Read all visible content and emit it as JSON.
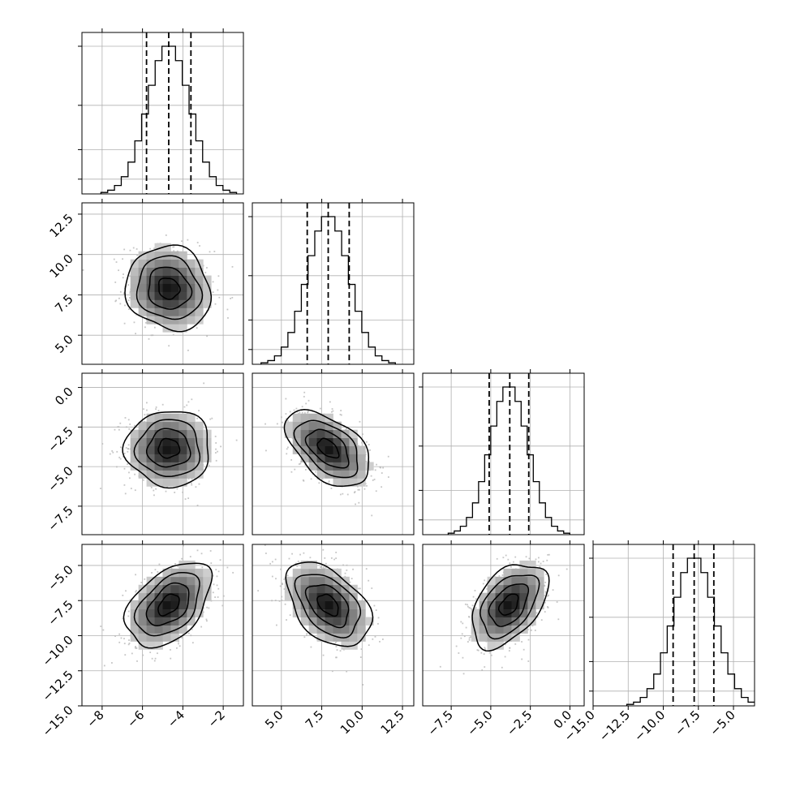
{
  "chart_data": {
    "type": "corner",
    "params": 4,
    "grid": true,
    "hist_bins": 20,
    "params_stats": [
      {
        "mean": -4.7,
        "sd": 1.05,
        "q16": -5.8,
        "q50": -4.7,
        "q84": -3.6,
        "range": [
          -9.0,
          -1.0
        ]
      },
      {
        "mean": 7.9,
        "sd": 1.3,
        "q16": 6.6,
        "q50": 7.9,
        "q84": 9.2,
        "range": [
          3.2,
          13.2
        ]
      },
      {
        "mean": -3.85,
        "sd": 1.2,
        "q16": -5.1,
        "q50": -3.8,
        "q84": -2.6,
        "range": [
          -9.3,
          0.9
        ]
      },
      {
        "mean": -7.8,
        "sd": 1.5,
        "q16": -9.3,
        "q50": -7.8,
        "q84": -6.4,
        "range": [
          -15.0,
          -3.5
        ]
      }
    ],
    "correlations": {
      "0-1": -0.1,
      "0-2": 0.0,
      "0-3": 0.45,
      "1-2": -0.5,
      "1-3": -0.45,
      "2-3": 0.45
    },
    "hist_ticks": [
      {
        "param": 0,
        "counts": [
          0.1,
          0.3,
          0.6,
          1.0,
          1.3
        ]
      },
      {
        "param": 1,
        "counts": [
          0.1,
          0.3,
          0.6,
          1.0
        ]
      },
      {
        "param": 2,
        "counts": [
          0.1,
          0.3,
          0.6,
          1.0
        ]
      },
      {
        "param": 3,
        "counts": [
          0.1,
          0.3,
          0.6,
          1.0
        ]
      }
    ],
    "x_ticks": [
      {
        "param": 0,
        "values": [
          -8,
          -6,
          -4,
          -2
        ],
        "labels": [
          "−8",
          "−6",
          "−4",
          "−2"
        ]
      },
      {
        "param": 1,
        "values": [
          5.0,
          7.5,
          10.0,
          12.5
        ],
        "labels": [
          "5.0",
          "7.5",
          "10.0",
          "12.5"
        ]
      },
      {
        "param": 2,
        "values": [
          -7.5,
          -5.0,
          -2.5,
          0.0
        ],
        "labels": [
          "−7.5",
          "−5.0",
          "−2.5",
          "0.0"
        ]
      },
      {
        "param": 3,
        "values": [
          -15.0,
          -12.5,
          -10.0,
          -7.5,
          -5.0
        ],
        "labels": [
          "−15.0",
          "−12.5",
          "−10.0",
          "−7.5",
          "−5.0"
        ]
      }
    ],
    "y_ticks": [
      {
        "param": 1,
        "values": [
          5.0,
          7.5,
          10.0,
          12.5
        ],
        "labels": [
          "5.0",
          "7.5",
          "10.0",
          "12.5"
        ]
      },
      {
        "param": 2,
        "values": [
          -7.5,
          -5.0,
          -2.5,
          0.0
        ],
        "labels": [
          "−7.5",
          "−5.0",
          "−2.5",
          "0.0"
        ]
      },
      {
        "param": 3,
        "values": [
          -15.0,
          -12.5,
          -10.0,
          -7.5,
          -5.0
        ],
        "labels": [
          "−15.0",
          "−12.5",
          "−10.0",
          "−7.5",
          "−5.0"
        ]
      }
    ]
  },
  "colors": {
    "line": "#000000",
    "grid": "#b0b0b0",
    "points": "#b8b8b8",
    "background": "#ffffff"
  }
}
